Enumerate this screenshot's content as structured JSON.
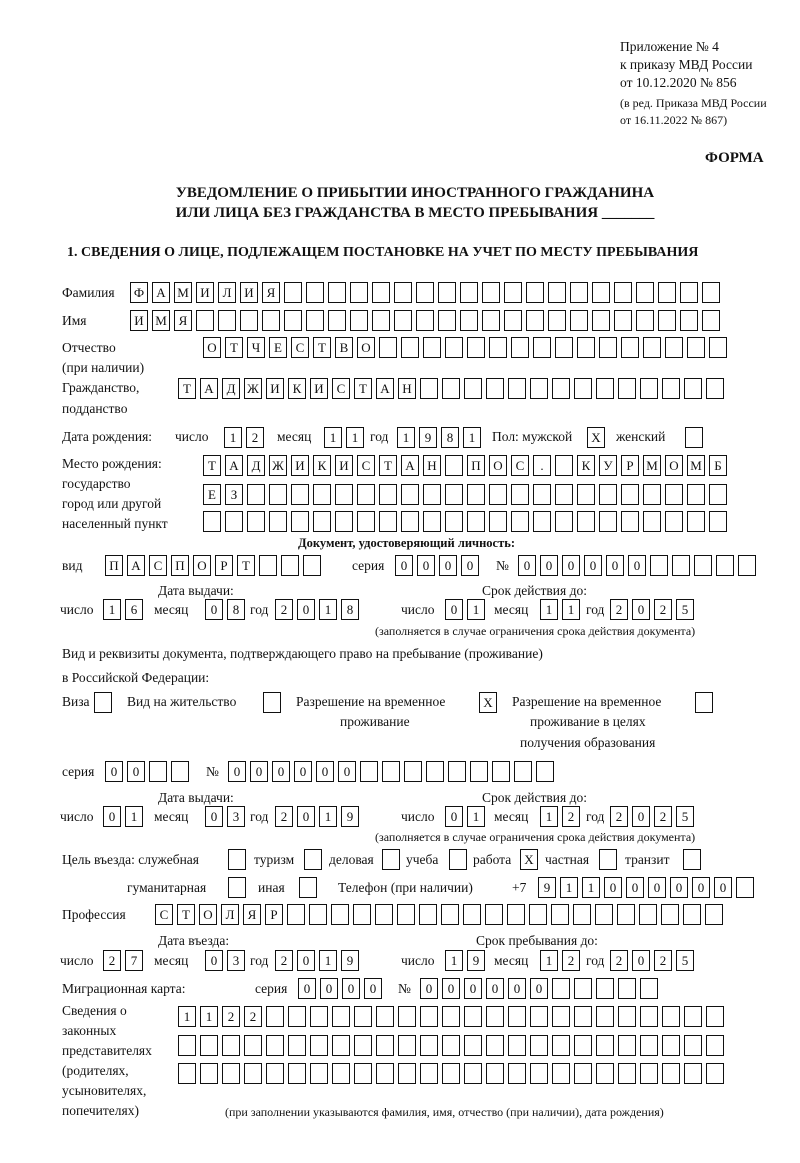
{
  "header": {
    "appendix": "Приложение № 4",
    "order": "к приказу МВД России",
    "order_date": "от 10.12.2020 № 856",
    "edition": "(в ред. Приказа МВД России",
    "edition_date": "от 16.11.2022 № 867)",
    "form": "ФОРМА",
    "title_line1": "УВЕДОМЛЕНИЕ О ПРИБЫТИИ ИНОСТРАННОГО ГРАЖДАНИНА",
    "title_line2": "ИЛИ ЛИЦА БЕЗ ГРАЖДАНСТВА В МЕСТО ПРЕБЫВАНИЯ _______"
  },
  "section1": {
    "heading": "1. СВЕДЕНИЯ О ЛИЦЕ, ПОДЛЕЖАЩЕМ ПОСТАНОВКЕ НА УЧЕТ ПО МЕСТУ ПРЕБЫВАНИЯ",
    "surname_label": "Фамилия",
    "surname": "ФАМИЛИЯ",
    "name_label": "Имя",
    "name": "ИМЯ",
    "patronymic_label": "Отчество",
    "patronymic_label2": "(при наличии)",
    "patronymic": "ОТЧЕСТВО",
    "citizenship_label": "Гражданство,",
    "citizenship_label2": "подданство",
    "citizenship": "ТАДЖИКИСТАН",
    "birth_label": "Дата рождения:",
    "day_label": "число",
    "month_label": "месяц",
    "year_label": "год",
    "birth_day": "12",
    "birth_month": "11",
    "birth_year": "1981",
    "sex_label": "Пол: мужской",
    "male": "X",
    "female_label": "женский",
    "female": "",
    "birthplace_label1": "Место рождения:",
    "birthplace_label2": "государство",
    "birthplace_label3": "город или другой",
    "birthplace_label4": "населенный пункт",
    "birthplace_row1": "ТАДЖИКИСТАН ПОС. КУРМОМБ",
    "birthplace_row2": "ЕЗ",
    "birthplace_row3": "",
    "id_doc_heading": "Документ, удостоверяющий личность:",
    "doc_type_label": "вид",
    "doc_type": "ПАСПОРТ",
    "series_label": "серия",
    "doc_series": "0000",
    "number_label": "№",
    "doc_number": "000000",
    "issue_label": "Дата выдачи:",
    "validity_label": "Срок действия до:",
    "doc_issue_day": "16",
    "doc_issue_month": "08",
    "doc_issue_year": "2018",
    "doc_valid_day": "01",
    "doc_valid_month": "11",
    "doc_valid_year": "2025",
    "validity_note": "(заполняется в случае ограничения срока действия документа)",
    "permit_heading1": "Вид и реквизиты документа, подтверждающего право на пребывание (проживание)",
    "permit_heading2": "в Российской Федерации:",
    "visa_label": "Виза",
    "visa": "",
    "residence_label": "Вид на жительство",
    "residence": "",
    "temp_label1": "Разрешение на временное",
    "temp_label2": "проживание",
    "temp": "X",
    "temp_edu_label1": "Разрешение на временное",
    "temp_edu_label2": "проживание в целях",
    "temp_edu_label3": "получения образования",
    "temp_edu": "",
    "permit_series": "00",
    "permit_number": "000000",
    "permit_issue_day": "01",
    "permit_issue_month": "03",
    "permit_issue_year": "2019",
    "permit_valid_day": "01",
    "permit_valid_month": "12",
    "permit_valid_year": "2025",
    "purpose_label": "Цель въезда: служебная",
    "purpose_business_trip": "",
    "tourism_label": "туризм",
    "tourism": "",
    "business_label": "деловая",
    "business": "",
    "study_label": "учеба",
    "study": "",
    "work_label": "работа",
    "work": "X",
    "private_label": "частная",
    "private": "",
    "transit_label": "транзит",
    "transit": "",
    "humanitarian_label": "гуманитарная",
    "humanitarian": "",
    "other_label": "иная",
    "other": "",
    "phone_label": "Телефон (при наличии)",
    "phone_prefix": "+7",
    "phone": "911000000",
    "profession_label": "Профессия",
    "profession": "СТОЛЯР",
    "entry_label": "Дата въезда:",
    "stay_until_label": "Срок пребывания до:",
    "entry_day": "27",
    "entry_month": "03",
    "entry_year": "2019",
    "stay_day": "19",
    "stay_month": "12",
    "stay_year": "2025",
    "migration_card_label": "Миграционная карта:",
    "mc_series": "0000",
    "mc_number": "000000",
    "reps_label1": "Сведения о",
    "reps_label2": "законных",
    "reps_label3": "представителях",
    "reps_label4": "(родителях,",
    "reps_label5": "усыновителях,",
    "reps_label6": "попечителях)",
    "reps_row1": "1122",
    "reps_row2": "",
    "reps_row3": "",
    "reps_note": "(при заполнении указываются фамилия, имя, отчество (при наличии), дата рождения)"
  }
}
